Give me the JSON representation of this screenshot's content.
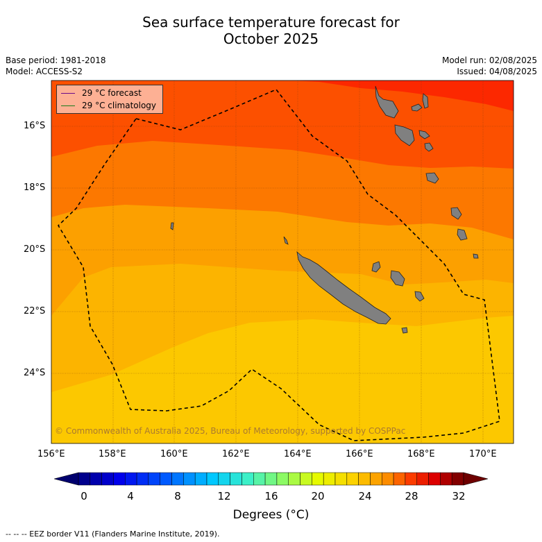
{
  "title_line1": "Sea surface temperature forecast for",
  "title_line2": "October 2025",
  "base_period": "Base period: 1981-2018",
  "model": "Model: ACCESS-S2",
  "model_run": "Model run: 02/08/2025",
  "issued": "Issued: 04/08/2025",
  "legend": {
    "forecast": "29 °C  forecast",
    "forecast_color": "#6a0a8a",
    "climatology": "29 °C  climatology",
    "climatology_color": "#1a7a1a"
  },
  "lat_labels": [
    "16°S",
    "18°S",
    "20°S",
    "22°S",
    "24°S"
  ],
  "lon_labels": [
    "156°E",
    "158°E",
    "160°E",
    "162°E",
    "164°E",
    "166°E",
    "168°E",
    "170°E"
  ],
  "copyright": "© Commonwealth of Australia 2025, Bureau of Meteorology, supported by COSPPac",
  "colorbar": {
    "tick_labels": [
      "0",
      "4",
      "8",
      "12",
      "16",
      "20",
      "24",
      "28",
      "32"
    ],
    "units_label": "Degrees (°C)"
  },
  "footnote": "--  --  -- EEZ border V11 (Flanders Marine Institute, 2019).",
  "temperature_bands": [
    {
      "label": "<= 24 °C",
      "color": "#fcc800"
    },
    {
      "label": "25 °C",
      "color": "#fcb400"
    },
    {
      "label": "26 °C",
      "color": "#fca000"
    },
    {
      "label": "27 °C",
      "color": "#fc7800"
    },
    {
      "label": "28 °C",
      "color": "#fc5000"
    },
    {
      "label": ">= 29 °C",
      "color": "#fc2800"
    }
  ]
}
